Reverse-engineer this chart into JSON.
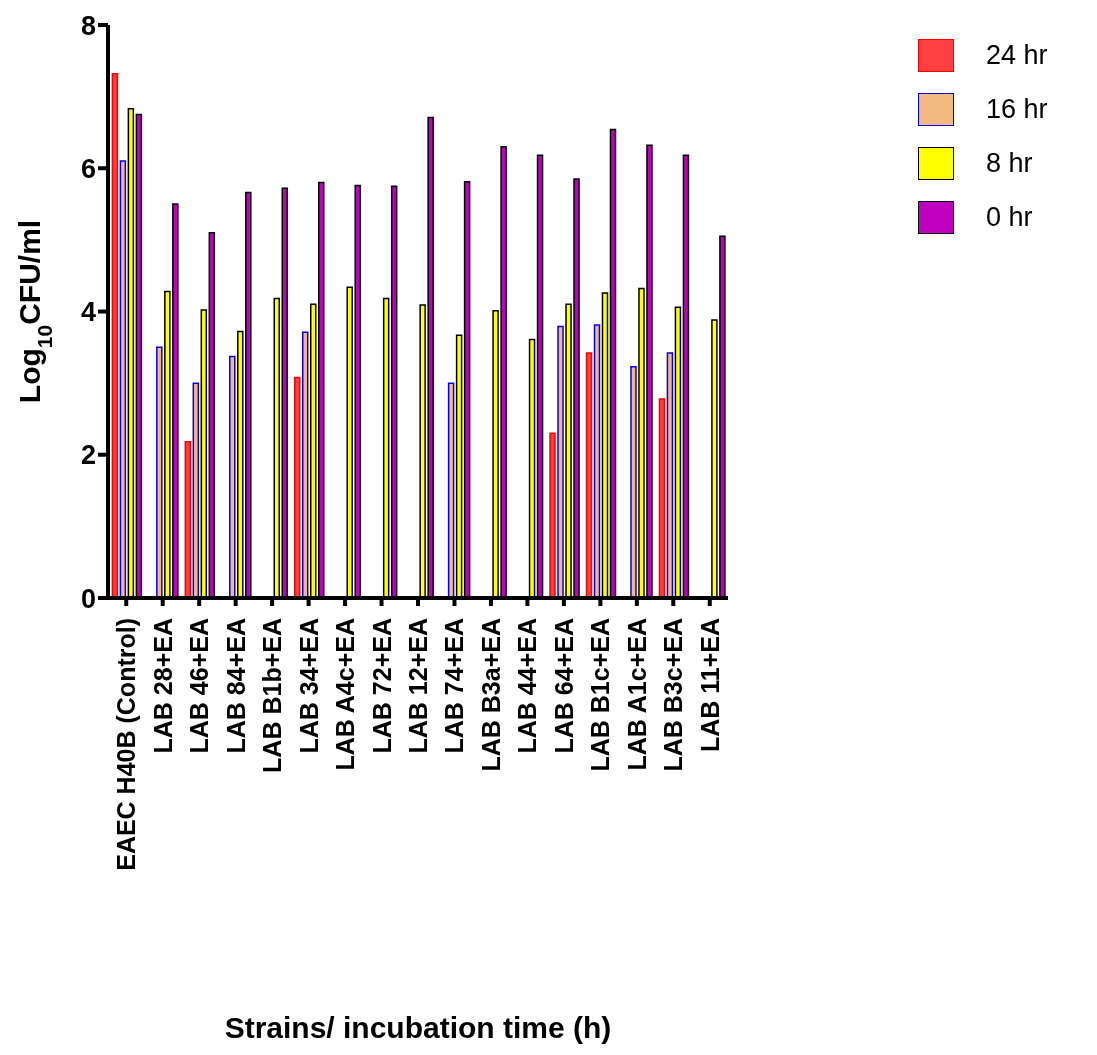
{
  "chart_data": {
    "type": "bar",
    "xlabel": "Strains/ incubation time (h)",
    "ylabel": "Log$_{10}$CFU/ml",
    "categories": [
      "EAEC H40B (Control)",
      "LAB 28+EA",
      "LAB 46+EA",
      "LAB 84+EA",
      "LAB B1b+EA",
      "LAB 34+EA",
      "LAB A4c+EA",
      "LAB 72+EA",
      "LAB 12+EA",
      "LAB 74+EA",
      "LAB B3a+EA",
      "LAB 44+EA",
      "LAB 64+EA",
      "LAB B1c+EA",
      "LAB A1c+EA",
      "LAB B3c+EA",
      "LAB 11+EA"
    ],
    "series": [
      {
        "name": "24 hr",
        "color": "#ff4040",
        "values": [
          7.32,
          null,
          2.18,
          null,
          null,
          3.08,
          null,
          null,
          null,
          null,
          null,
          null,
          2.3,
          3.42,
          null,
          2.78,
          null
        ]
      },
      {
        "name": "16 hr",
        "color": "#f4b97f",
        "values": [
          6.1,
          3.5,
          3.0,
          3.37,
          null,
          3.71,
          null,
          null,
          null,
          3.0,
          null,
          null,
          3.79,
          3.81,
          3.23,
          3.42,
          null
        ]
      },
      {
        "name": "8 hr",
        "color": "#ffff00",
        "values": [
          6.83,
          4.28,
          4.02,
          3.72,
          4.18,
          4.1,
          4.34,
          4.18,
          4.09,
          3.67,
          4.01,
          3.61,
          4.1,
          4.26,
          4.32,
          4.06,
          3.88
        ]
      },
      {
        "name": "0 hr",
        "color": "#c000c0",
        "values": [
          6.75,
          5.5,
          5.1,
          5.66,
          5.72,
          5.8,
          5.76,
          5.75,
          6.71,
          5.81,
          6.3,
          6.18,
          5.85,
          6.54,
          6.32,
          6.18,
          5.05
        ]
      }
    ],
    "ylim": [
      0,
      8
    ],
    "yticks": [
      0,
      2,
      4,
      6,
      8
    ],
    "grid": false,
    "legend": "top right"
  }
}
